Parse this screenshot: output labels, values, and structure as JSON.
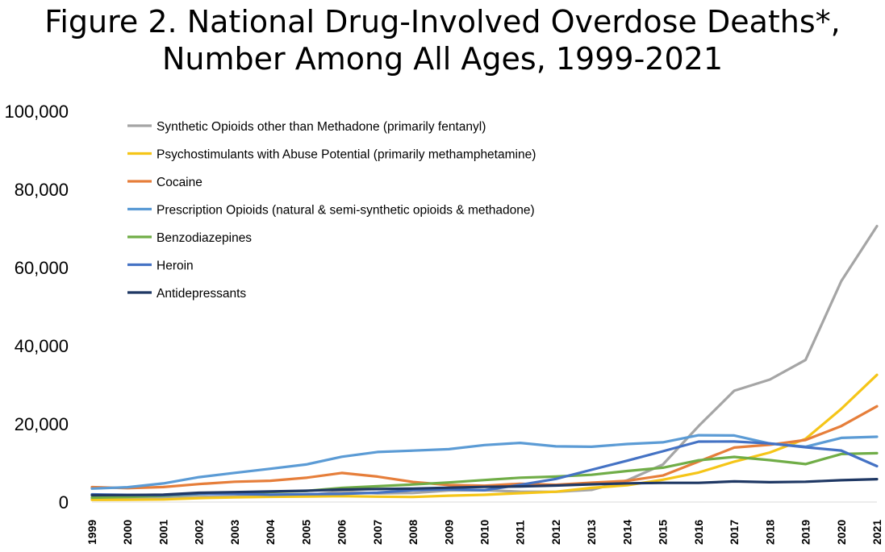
{
  "chart_data": {
    "type": "line",
    "title": "Figure 2. National Drug-Involved Overdose Deaths*,\nNumber Among All Ages, 1999-2021",
    "xlabel": "",
    "ylabel": "",
    "ylim": [
      0,
      100000
    ],
    "yticks": [
      0,
      20000,
      40000,
      60000,
      80000,
      100000
    ],
    "ytick_labels": [
      "0",
      "20,000",
      "40,000",
      "60,000",
      "80,000",
      "100,000"
    ],
    "grid": false,
    "legend_position": "top-left",
    "x": [
      "1999",
      "2000",
      "2001",
      "2002",
      "2003",
      "2004",
      "2005",
      "2006",
      "2007",
      "2008",
      "2009",
      "2010",
      "2011",
      "2012",
      "2013",
      "2014",
      "2015",
      "2016",
      "2017",
      "2018",
      "2019",
      "2020",
      "2021"
    ],
    "series": [
      {
        "name": "Synthetic Opioids other than Methadone (primarily fentanyl)",
        "color": "#a5a5a5",
        "values": [
          730,
          782,
          957,
          1295,
          1400,
          1664,
          1742,
          2707,
          2213,
          2306,
          2946,
          3007,
          2666,
          2628,
          3105,
          5544,
          9580,
          19413,
          28466,
          31335,
          36359,
          56516,
          70601
        ]
      },
      {
        "name": "Psychostimulants with Abuse Potential (primarily methamphetamine)",
        "color": "#f5c518",
        "values": [
          547,
          578,
          650,
          1003,
          1194,
          1344,
          1406,
          1535,
          1377,
          1302,
          1621,
          1854,
          2266,
          2635,
          3627,
          4298,
          5716,
          7542,
          10333,
          12676,
          16167,
          23837,
          32537
        ]
      },
      {
        "name": "Cocaine",
        "color": "#e67e3a",
        "values": [
          3822,
          3544,
          3833,
          4599,
          5199,
          5443,
          6208,
          7448,
          6512,
          5129,
          4350,
          4183,
          4681,
          4404,
          4944,
          5415,
          6784,
          10375,
          13942,
          14666,
          15883,
          19447,
          24486
        ]
      },
      {
        "name": "Prescription Opioids (natural & semi-synthetic opioids & methadone)",
        "color": "#5b9bd5",
        "values": [
          3442,
          3785,
          4770,
          6370,
          7456,
          8517,
          9612,
          11589,
          12796,
          13149,
          13523,
          14583,
          15140,
          14240,
          14145,
          14838,
          15281,
          17087,
          17029,
          14975,
          14139,
          16416,
          16706
        ]
      },
      {
        "name": "Benzodiazepines",
        "color": "#70ad47",
        "values": [
          1135,
          1298,
          1594,
          2011,
          2248,
          2585,
          2834,
          3600,
          4038,
          4503,
          5019,
          5619,
          6224,
          6524,
          6973,
          7945,
          8791,
          10684,
          11537,
          10724,
          9711,
          12290,
          12499
        ]
      },
      {
        "name": "Heroin",
        "color": "#4472c4",
        "values": [
          1960,
          1842,
          1779,
          2089,
          2080,
          1878,
          2009,
          2088,
          2399,
          3041,
          3278,
          3036,
          4397,
          5925,
          8257,
          10574,
          12989,
          15469,
          15482,
          14996,
          14019,
          13165,
          9173
        ]
      },
      {
        "name": "Antidepressants",
        "color": "#1f3864",
        "values": [
          1749,
          1802,
          1873,
          2378,
          2528,
          2705,
          2890,
          3197,
          3313,
          3448,
          3667,
          3883,
          4006,
          4228,
          4543,
          4790,
          4912,
          4900,
          5269,
          5064,
          5194,
          5597,
          5863
        ]
      }
    ]
  }
}
